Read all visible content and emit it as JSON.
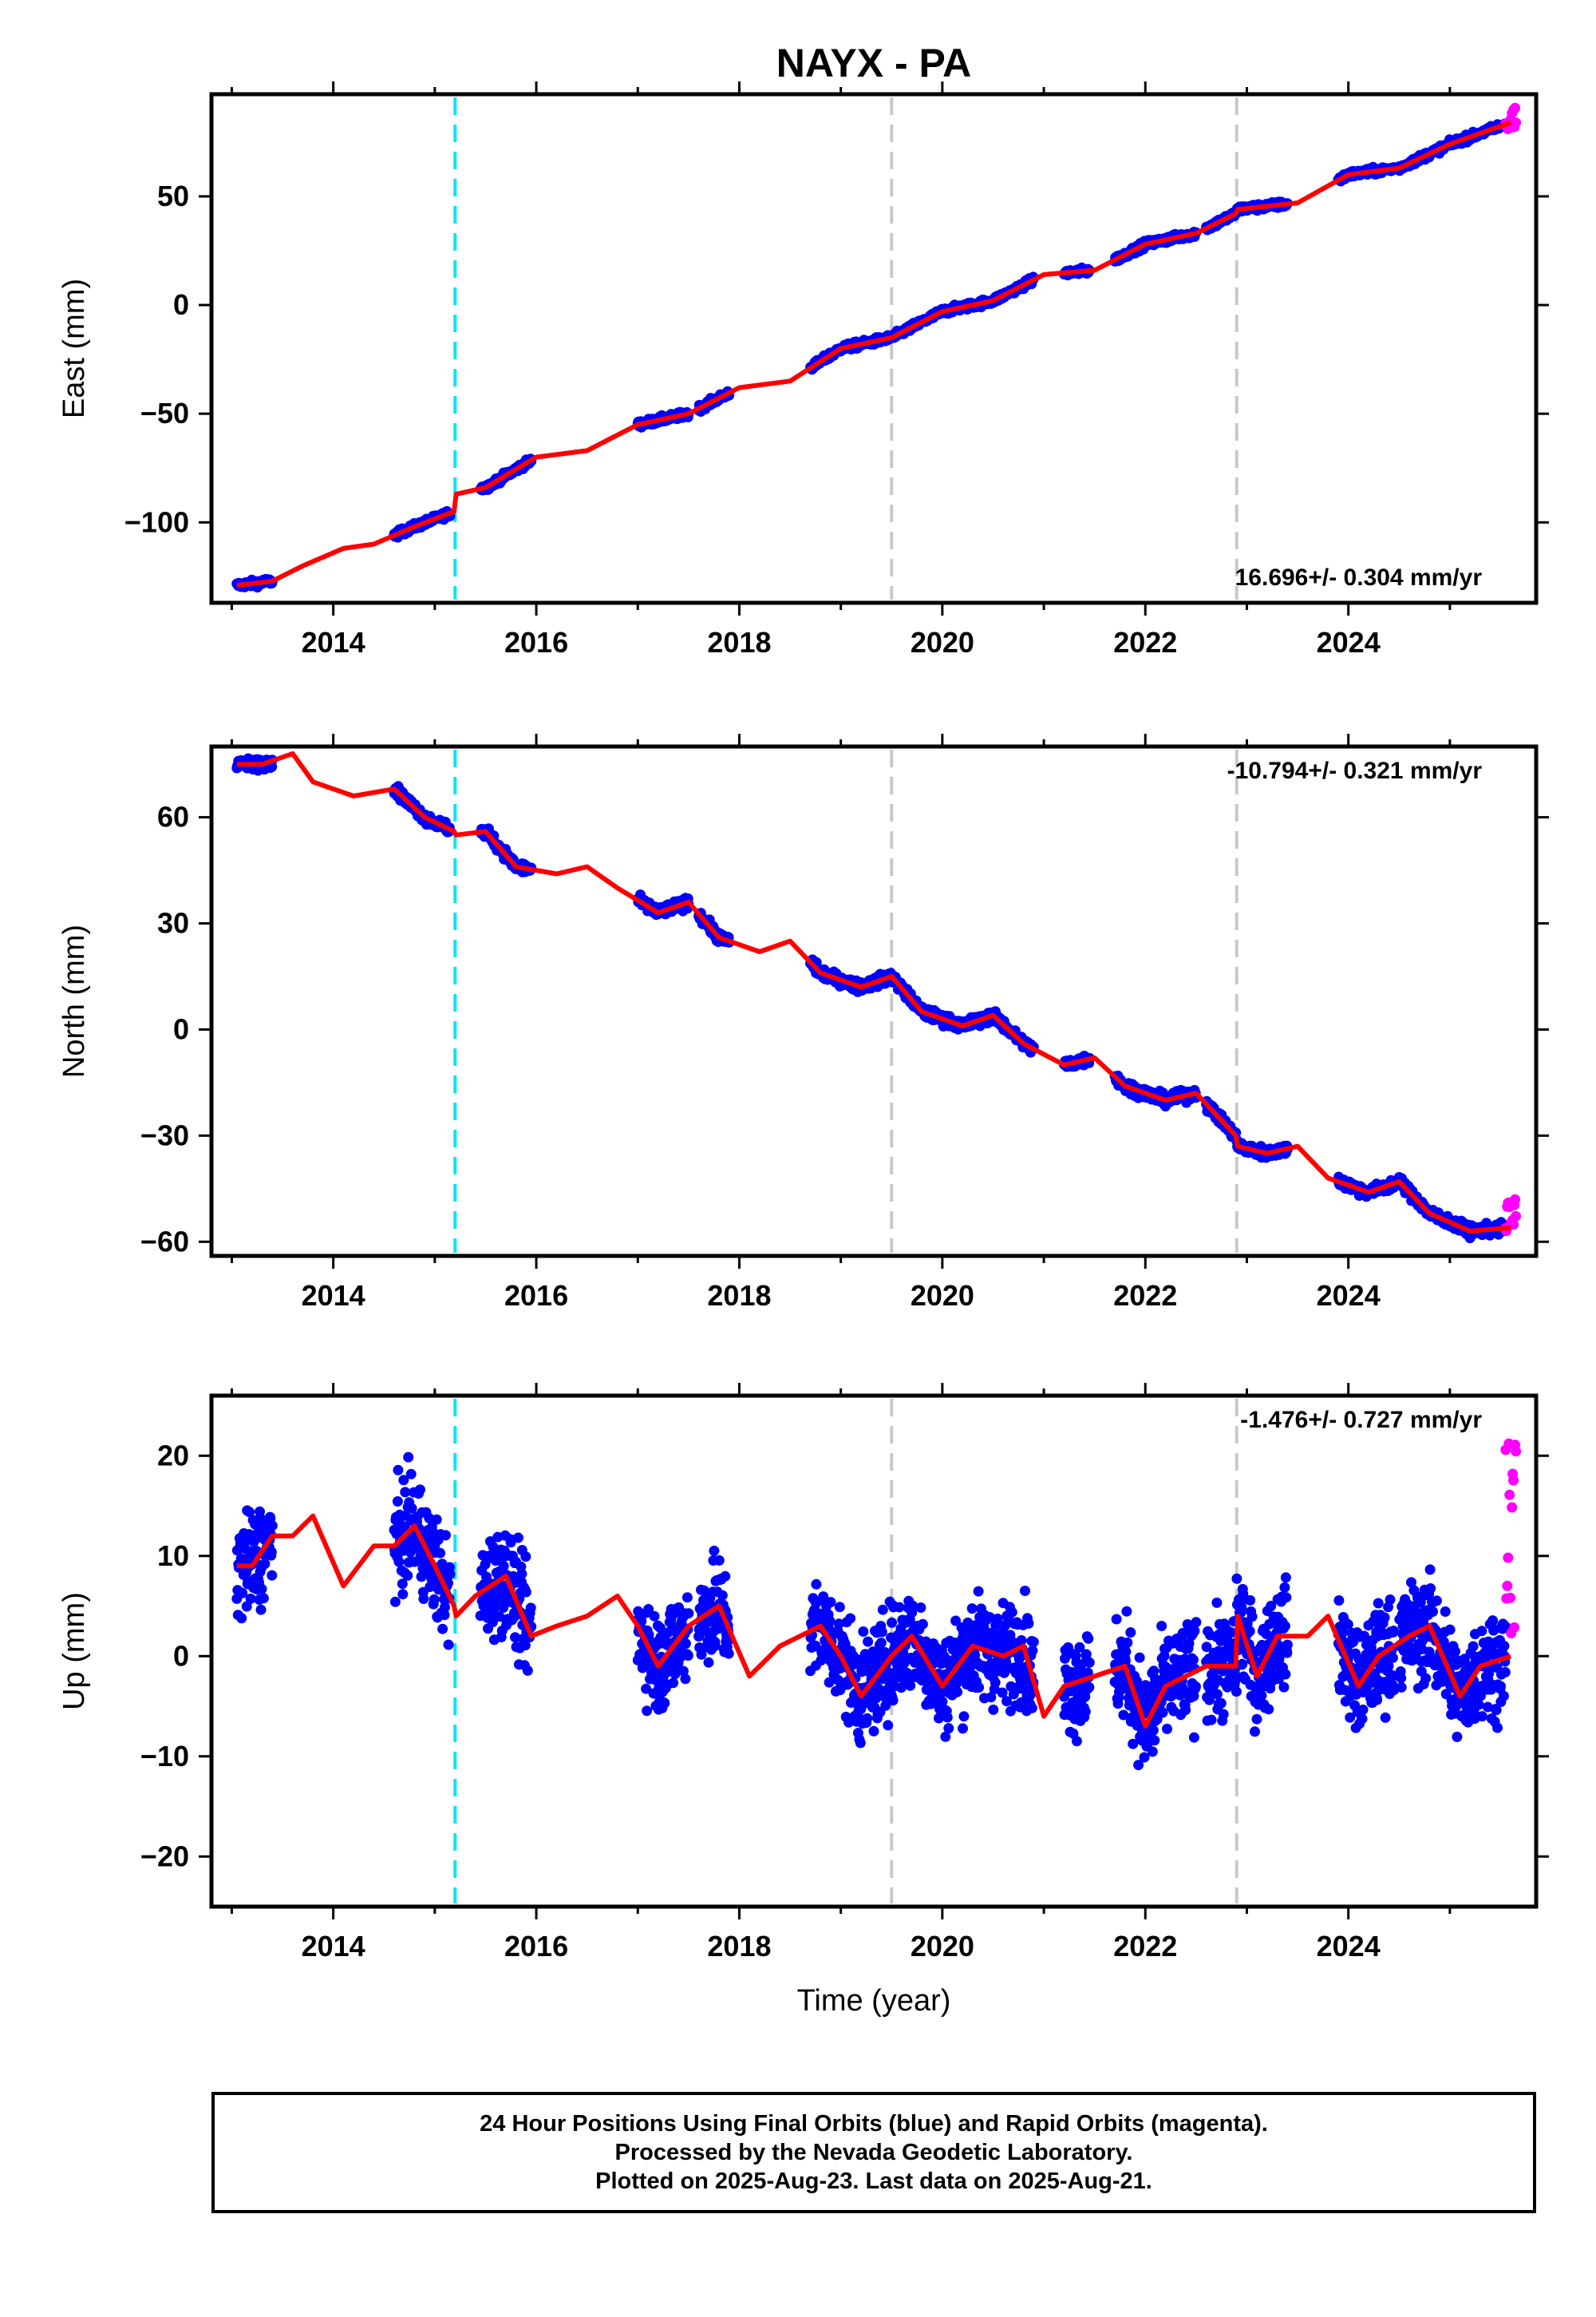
{
  "title": "NAYX - PA",
  "xlabel": "Time (year)",
  "colors": {
    "final_orbits": "#0000ff",
    "rapid_orbits": "#ff00ff",
    "model": "#ff0000",
    "antenna_change": "#00e5ff",
    "other_event": "#c8c8c8"
  },
  "caption": [
    "24 Hour Positions Using Final Orbits (blue) and Rapid Orbits (magenta).",
    "Processed by the Nevada Geodetic Laboratory.",
    "Plotted on 2025-Aug-23. Last data on 2025-Aug-21."
  ],
  "chart_data": [
    {
      "type": "scatter",
      "component": "East",
      "ylabel": "East (mm)",
      "velocity_label": "16.696+/- 0.304 mm/yr",
      "xlim": [
        2012.8,
        2025.85
      ],
      "ylim": [
        -137,
        97
      ],
      "xticks": [
        2014,
        2016,
        2018,
        2020,
        2022,
        2024
      ],
      "yticks": [
        -100,
        -50,
        0,
        50
      ],
      "event_lines": [
        {
          "x": 2015.2,
          "kind": "antenna_change"
        },
        {
          "x": 2019.5,
          "kind": "other_event"
        },
        {
          "x": 2022.9,
          "kind": "other_event"
        }
      ],
      "data_segments": [
        [
          2013.05,
          2013.4
        ],
        [
          2014.6,
          2015.15
        ],
        [
          2015.45,
          2015.95
        ],
        [
          2017.0,
          2017.5
        ],
        [
          2017.6,
          2017.9
        ],
        [
          2018.7,
          2019.9
        ],
        [
          2019.9,
          2020.9
        ],
        [
          2021.2,
          2021.45
        ],
        [
          2021.7,
          2022.5
        ],
        [
          2022.6,
          2023.4
        ],
        [
          2023.9,
          2024.45
        ],
        [
          2024.5,
          2025.55
        ]
      ],
      "rapid_segment": [
        2025.55,
        2025.65
      ],
      "model": {
        "x": [
          2013.05,
          2013.4,
          2013.7,
          2014.1,
          2014.4,
          2014.8,
          2015.19,
          2015.21,
          2015.5,
          2016.0,
          2016.5,
          2017.0,
          2017.5,
          2018.0,
          2018.5,
          2019.0,
          2019.5,
          2020.0,
          2020.5,
          2021.0,
          2021.5,
          2022.0,
          2022.5,
          2022.89,
          2022.91,
          2023.5,
          2024.0,
          2024.5,
          2025.0,
          2025.6
        ],
        "y": [
          -129,
          -127,
          -120,
          -112,
          -110,
          -102,
          -95,
          -87,
          -84,
          -70,
          -67,
          -55,
          -50,
          -38,
          -35,
          -20,
          -15,
          -3,
          2,
          14,
          16,
          28,
          33,
          42,
          44,
          47,
          60,
          63,
          74,
          84
        ]
      },
      "rapid_y_range": [
        80,
        92
      ]
    },
    {
      "type": "scatter",
      "component": "North",
      "ylabel": "North (mm)",
      "velocity_label": "-10.794+/- 0.321 mm/yr",
      "xlim": [
        2012.8,
        2025.85
      ],
      "ylim": [
        -64,
        80
      ],
      "xticks": [
        2014,
        2016,
        2018,
        2020,
        2022,
        2024
      ],
      "yticks": [
        -60,
        -30,
        0,
        30,
        60
      ],
      "event_lines": [
        {
          "x": 2015.2,
          "kind": "antenna_change"
        },
        {
          "x": 2019.5,
          "kind": "other_event"
        },
        {
          "x": 2022.9,
          "kind": "other_event"
        }
      ],
      "data_segments": [
        [
          2013.05,
          2013.4
        ],
        [
          2014.6,
          2015.15
        ],
        [
          2015.45,
          2015.95
        ],
        [
          2017.0,
          2017.5
        ],
        [
          2017.6,
          2017.9
        ],
        [
          2018.7,
          2019.9
        ],
        [
          2019.9,
          2020.9
        ],
        [
          2021.2,
          2021.45
        ],
        [
          2021.7,
          2022.5
        ],
        [
          2022.6,
          2023.4
        ],
        [
          2023.9,
          2024.45
        ],
        [
          2024.5,
          2025.55
        ]
      ],
      "rapid_segment": [
        2025.55,
        2025.65
      ],
      "model": {
        "x": [
          2013.05,
          2013.3,
          2013.6,
          2013.8,
          2014.2,
          2014.6,
          2014.9,
          2015.19,
          2015.21,
          2015.5,
          2015.8,
          2016.2,
          2016.5,
          2016.8,
          2017.2,
          2017.5,
          2017.8,
          2018.2,
          2018.5,
          2018.8,
          2019.2,
          2019.5,
          2019.8,
          2020.2,
          2020.5,
          2020.8,
          2021.2,
          2021.5,
          2021.8,
          2022.2,
          2022.5,
          2022.89,
          2022.91,
          2023.2,
          2023.5,
          2023.8,
          2024.2,
          2024.5,
          2024.8,
          2025.2,
          2025.6
        ],
        "y": [
          75,
          75,
          78,
          70,
          66,
          68,
          60,
          56,
          55,
          56,
          46,
          44,
          46,
          40,
          33,
          36,
          26,
          22,
          25,
          16,
          12,
          15,
          5,
          1,
          4,
          -4,
          -10,
          -8,
          -16,
          -20,
          -18,
          -30,
          -33,
          -35,
          -33,
          -42,
          -46,
          -43,
          -52,
          -57,
          -56
        ]
      },
      "rapid_y_range": [
        -59,
        -48
      ]
    },
    {
      "type": "scatter",
      "component": "Up",
      "ylabel": "Up (mm)",
      "velocity_label": "-1.476+/- 0.727 mm/yr",
      "xlim": [
        2012.8,
        2025.85
      ],
      "ylim": [
        -25,
        26
      ],
      "xticks": [
        2014,
        2016,
        2018,
        2020,
        2022,
        2024
      ],
      "yticks": [
        -20,
        -10,
        0,
        10,
        20
      ],
      "event_lines": [
        {
          "x": 2015.2,
          "kind": "antenna_change"
        },
        {
          "x": 2019.5,
          "kind": "other_event"
        },
        {
          "x": 2022.9,
          "kind": "other_event"
        }
      ],
      "data_segments": [
        [
          2013.05,
          2013.4
        ],
        [
          2014.6,
          2015.15
        ],
        [
          2015.45,
          2015.95
        ],
        [
          2017.0,
          2017.5
        ],
        [
          2017.6,
          2017.9
        ],
        [
          2018.7,
          2019.9
        ],
        [
          2019.9,
          2020.9
        ],
        [
          2021.2,
          2021.45
        ],
        [
          2021.7,
          2022.5
        ],
        [
          2022.6,
          2023.4
        ],
        [
          2023.9,
          2024.45
        ],
        [
          2024.5,
          2025.55
        ]
      ],
      "rapid_segment": [
        2025.55,
        2025.65
      ],
      "model": {
        "x": [
          2013.05,
          2013.2,
          2013.4,
          2013.6,
          2013.8,
          2014.1,
          2014.4,
          2014.6,
          2014.8,
          2015.0,
          2015.19,
          2015.21,
          2015.4,
          2015.7,
          2015.95,
          2016.2,
          2016.5,
          2016.8,
          2017.0,
          2017.2,
          2017.5,
          2017.8,
          2018.1,
          2018.4,
          2018.8,
          2019.0,
          2019.2,
          2019.5,
          2019.7,
          2020.0,
          2020.3,
          2020.6,
          2020.8,
          2021.0,
          2021.2,
          2021.5,
          2021.8,
          2022.0,
          2022.2,
          2022.4,
          2022.6,
          2022.89,
          2022.91,
          2023.1,
          2023.3,
          2023.6,
          2023.8,
          2024.1,
          2024.3,
          2024.6,
          2024.8,
          2025.1,
          2025.3,
          2025.6
        ],
        "y": [
          9,
          9,
          12,
          12,
          14,
          7,
          11,
          11,
          13,
          9,
          5,
          4,
          6,
          8,
          2,
          3,
          4,
          6,
          3,
          -1,
          3,
          5,
          -2,
          1,
          3,
          0,
          -4,
          0,
          2,
          -3,
          1,
          0,
          1,
          -6,
          -3,
          -2,
          -1,
          -7,
          -3,
          -2,
          -1,
          -1,
          4,
          -2,
          2,
          2,
          4,
          -3,
          0,
          2,
          3,
          -4,
          -1,
          0
        ]
      },
      "rapid_y_range": [
        -3,
        22
      ]
    }
  ]
}
